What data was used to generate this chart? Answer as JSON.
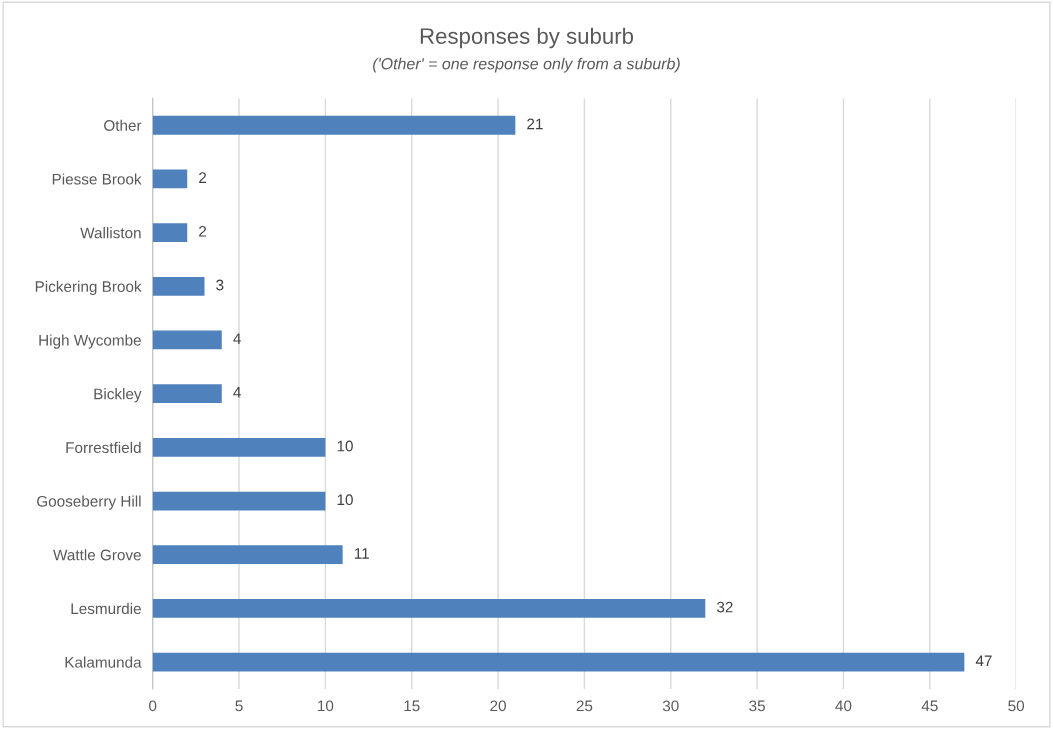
{
  "chart_data": {
    "type": "bar",
    "orientation": "horizontal",
    "title": "Responses by suburb",
    "subtitle": "('Other' = one response only from a suburb)",
    "categories": [
      "Other",
      "Piesse Brook",
      "Walliston",
      "Pickering Brook",
      "High Wycombe",
      "Bickley",
      "Forrestfield",
      "Gooseberry Hill",
      "Wattle Grove",
      "Lesmurdie",
      "Kalamunda"
    ],
    "values": [
      21,
      2,
      2,
      3,
      4,
      4,
      10,
      10,
      11,
      32,
      47
    ],
    "color": "#4f81bd",
    "xlim": [
      0,
      50
    ],
    "xticks": [
      0,
      5,
      10,
      15,
      20,
      25,
      30,
      35,
      40,
      45,
      50
    ],
    "grid": "x",
    "data_labels": true,
    "legend": false
  }
}
